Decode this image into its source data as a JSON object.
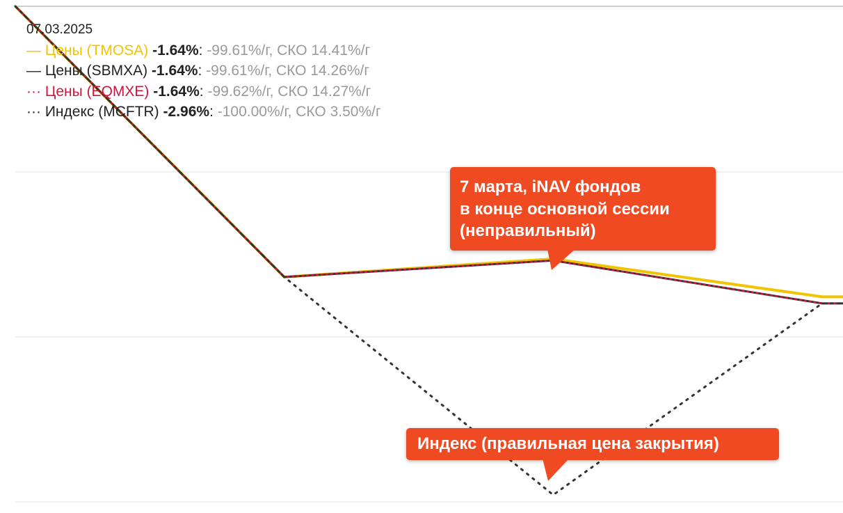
{
  "legend": {
    "date": "07.03.2025",
    "rows": [
      {
        "marker": "—",
        "name": "Цены (TMOSA)",
        "change": "-1.64%",
        "sep": ":",
        "stats": " -99.61%/г, СКО 14.41%/г",
        "color": "#f2c400"
      },
      {
        "marker": "—",
        "name": "Цены (SBMXA)",
        "change": "-1.64%",
        "sep": ":",
        "stats": " -99.61%/г, СКО 14.26%/г",
        "color": "#222222"
      },
      {
        "marker": "···",
        "name": "Цены (EQMXE)",
        "change": "-1.64%",
        "sep": ":",
        "stats": " -99.62%/г, СКО 14.27%/г",
        "color": "#d0143c"
      },
      {
        "marker": "···",
        "name": "Индекс (MCFTR)",
        "change": "-2.96%",
        "sep": ":",
        "stats": " -100.00%/г, СКО 3.50%/г",
        "color": "#222222"
      }
    ]
  },
  "annotations": {
    "inav_line1": "7 марта, iNAV фондов",
    "inav_line2": "в конце основной сессии",
    "inav_line3": "(неправильный)",
    "index": "Индекс (правильная цена закрытия)"
  },
  "chart_data": {
    "type": "line",
    "title": "",
    "xlabel": "",
    "ylabel": "",
    "x": [
      0,
      1,
      2,
      3
    ],
    "ylim": [
      -2.96,
      0.0
    ],
    "grid": true,
    "series": [
      {
        "name": "Цены (TMOSA)",
        "values": [
          0.0,
          -1.64,
          -1.53,
          -1.76
        ],
        "color": "#f2c400",
        "style": "solid"
      },
      {
        "name": "Цены (SBMXA)",
        "values": [
          0.0,
          -1.64,
          -1.54,
          -1.8
        ],
        "color": "#333333",
        "style": "solid"
      },
      {
        "name": "Цены (EQMXE)",
        "values": [
          0.0,
          -1.64,
          -1.54,
          -1.8
        ],
        "color": "#d0143c",
        "style": "dotted"
      },
      {
        "name": "Индекс (MCFTR)",
        "values": [
          0.0,
          -1.64,
          -2.96,
          -1.8
        ],
        "color": "#333333",
        "style": "dotted"
      }
    ]
  }
}
